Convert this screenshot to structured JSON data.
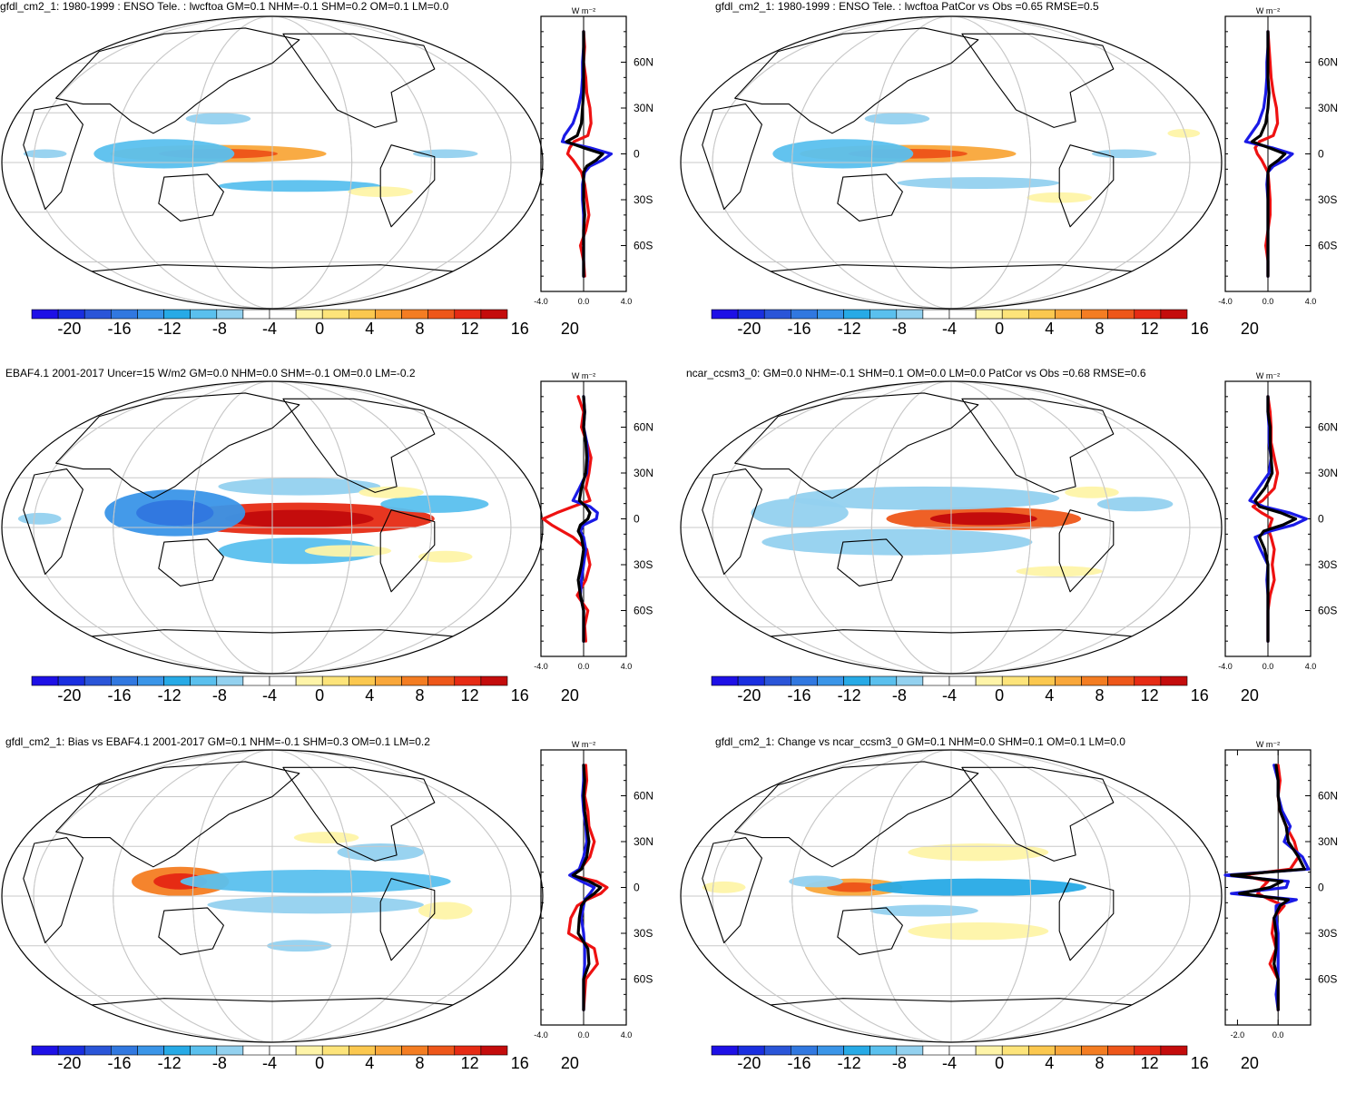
{
  "colors": {
    "scale": [
      "#1e10e6",
      "#1a2fe0",
      "#2a55d8",
      "#3178e0",
      "#3a95e8",
      "#27aae6",
      "#5ac0ee",
      "#93d1ef",
      "#ffffff",
      "#ffffff",
      "#fef4a8",
      "#fde47a",
      "#fbc84f",
      "#f9a73a",
      "#f47d22",
      "#ee571a",
      "#e62b14",
      "#c40c0c"
    ],
    "red_line": "#ee1111",
    "blue_line": "#1a1ae6",
    "black_line": "#000000",
    "grid": "#c8c8c8"
  },
  "chart_data": [
    {
      "type": "heatmap",
      "title": "gfdl_cm2_1: 1980-1999 : ENSO Tele. : lwcftoa GM=0.1 NHM=-0.1 SHM=0.2 OM=0.1 LM=0.0",
      "colorbar_ticks": [
        "-20",
        "-16",
        "-12",
        "-8",
        "-4",
        "0",
        "4",
        "8",
        "12",
        "16",
        "20"
      ],
      "zonal_mean": {
        "unit_label": "W m⁻²",
        "xlim": [
          -4.0,
          4.0
        ],
        "xticks": [
          "-4.0",
          "0.0",
          "4.0"
        ],
        "yticks": [
          "60N",
          "30N",
          "0",
          "30S",
          "60S"
        ],
        "lat": [
          80,
          70,
          60,
          50,
          40,
          30,
          20,
          12,
          8,
          4,
          0,
          -4,
          -8,
          -12,
          -20,
          -30,
          -40,
          -50,
          -60,
          -70,
          -80
        ],
        "series": [
          {
            "name": "red",
            "color": "red",
            "values": [
              0.0,
              0.1,
              0.0,
              0.2,
              0.3,
              0.6,
              0.7,
              0.4,
              -0.9,
              -1.3,
              -1.5,
              -1.0,
              -0.6,
              -0.2,
              0.1,
              0.3,
              0.5,
              0.2,
              -0.3,
              0.0,
              0.1
            ]
          },
          {
            "name": "blue",
            "color": "blue",
            "values": [
              0.0,
              0.0,
              -0.1,
              -0.1,
              -0.2,
              -0.5,
              -1.0,
              -1.8,
              -2.0,
              0.6,
              2.6,
              1.8,
              0.6,
              0.1,
              -0.1,
              -0.1,
              0.0,
              0.0,
              0.0,
              0.0,
              0.0
            ]
          },
          {
            "name": "black",
            "color": "black",
            "values": [
              0.0,
              0.0,
              0.0,
              0.0,
              0.0,
              -0.1,
              -0.2,
              -0.6,
              -1.6,
              0.0,
              1.8,
              1.2,
              0.3,
              0.0,
              0.0,
              0.0,
              0.1,
              0.0,
              0.0,
              0.0,
              0.0
            ]
          }
        ]
      }
    },
    {
      "type": "heatmap",
      "title": "gfdl_cm2_1: 1980-1999 : ENSO Tele. : lwcftoa PatCor vs Obs =0.65 RMSE=0.5",
      "colorbar_ticks": [
        "-20",
        "-16",
        "-12",
        "-8",
        "-4",
        "0",
        "4",
        "8",
        "12",
        "16",
        "20"
      ],
      "zonal_mean": {
        "unit_label": "W m⁻²",
        "xlim": [
          -4.0,
          4.0
        ],
        "xticks": [
          "-4.0",
          "0.0",
          "4.0"
        ],
        "yticks": [
          "60N",
          "30N",
          "0",
          "30S",
          "60S"
        ],
        "lat": [
          80,
          70,
          60,
          50,
          40,
          30,
          20,
          12,
          8,
          4,
          0,
          -4,
          -8,
          -12,
          -20,
          -30,
          -40,
          -50,
          -60,
          -70,
          -80
        ],
        "series": [
          {
            "name": "red",
            "color": "red",
            "values": [
              0.0,
              0.1,
              0.2,
              0.3,
              0.5,
              0.8,
              0.9,
              0.5,
              -0.8,
              -1.2,
              -1.0,
              -0.6,
              -0.3,
              0.0,
              0.1,
              0.2,
              0.2,
              0.0,
              -0.2,
              0.0,
              0.0
            ]
          },
          {
            "name": "blue",
            "color": "blue",
            "values": [
              0.0,
              0.0,
              -0.1,
              -0.1,
              -0.2,
              -0.4,
              -0.9,
              -1.7,
              -2.1,
              0.4,
              2.3,
              1.6,
              0.5,
              0.0,
              -0.1,
              0.0,
              0.0,
              0.0,
              0.0,
              0.0,
              0.0
            ]
          },
          {
            "name": "black",
            "color": "black",
            "values": [
              0.0,
              0.0,
              0.0,
              0.0,
              0.1,
              0.0,
              -0.2,
              -0.7,
              -1.5,
              0.1,
              1.6,
              1.0,
              0.2,
              0.0,
              0.0,
              0.0,
              0.0,
              0.0,
              0.0,
              0.0,
              0.0
            ]
          }
        ]
      }
    },
    {
      "type": "heatmap",
      "title": "EBAF4.1 2001-2017 Uncer=15 W/m2 GM=0.0 NHM=0.0 SHM=-0.1 OM=0.0 LM=-0.2",
      "colorbar_ticks": [
        "-20",
        "-16",
        "-12",
        "-8",
        "-4",
        "0",
        "4",
        "8",
        "12",
        "16",
        "20"
      ],
      "zonal_mean": {
        "unit_label": "W m⁻²",
        "xlim": [
          -4.0,
          4.0
        ],
        "xticks": [
          "-4.0",
          "0.0",
          "4.0"
        ],
        "yticks": [
          "60N",
          "30N",
          "0",
          "30S",
          "60S"
        ],
        "lat": [
          80,
          70,
          60,
          50,
          40,
          30,
          20,
          12,
          8,
          4,
          0,
          -4,
          -8,
          -12,
          -20,
          -30,
          -40,
          -50,
          -60,
          -70,
          -80
        ],
        "series": [
          {
            "name": "red",
            "color": "red",
            "values": [
              -0.5,
              0.0,
              -0.2,
              0.3,
              0.7,
              0.5,
              0.2,
              0.6,
              -1.0,
              -2.5,
              -3.8,
              -3.0,
              -2.0,
              -1.0,
              0.3,
              0.6,
              0.2,
              -0.6,
              0.4,
              0.1,
              0.2
            ]
          },
          {
            "name": "blue",
            "color": "blue",
            "values": [
              0.0,
              0.1,
              0.0,
              0.3,
              0.4,
              0.3,
              -0.4,
              -1.0,
              0.6,
              1.3,
              1.2,
              0.0,
              -0.3,
              0.0,
              0.2,
              0.0,
              -0.2,
              -0.3,
              0.0,
              0.0,
              0.0
            ]
          },
          {
            "name": "black",
            "color": "black",
            "values": [
              0.0,
              0.1,
              0.0,
              0.2,
              0.3,
              0.2,
              -0.2,
              -0.4,
              0.2,
              0.6,
              0.4,
              -0.3,
              -0.5,
              -0.2,
              0.0,
              -0.2,
              -0.5,
              -0.3,
              0.0,
              0.0,
              0.0
            ]
          }
        ]
      }
    },
    {
      "type": "heatmap",
      "title": "ncar_ccsm3_0: GM=0.0 NHM=-0.1 SHM=0.1 OM=0.0 LM=0.0 PatCor vs Obs =0.68 RMSE=0.6",
      "colorbar_ticks": [
        "-20",
        "-16",
        "-12",
        "-8",
        "-4",
        "0",
        "4",
        "8",
        "12",
        "16",
        "20"
      ],
      "zonal_mean": {
        "unit_label": "W m⁻²",
        "xlim": [
          -4.0,
          4.0
        ],
        "xticks": [
          "-4.0",
          "0.0",
          "4.0"
        ],
        "yticks": [
          "60N",
          "30N",
          "0",
          "30S",
          "60S"
        ],
        "lat": [
          80,
          70,
          60,
          50,
          40,
          30,
          20,
          12,
          8,
          4,
          0,
          -4,
          -8,
          -12,
          -20,
          -30,
          -40,
          -50,
          -60,
          -70,
          -80
        ],
        "series": [
          {
            "name": "red",
            "color": "red",
            "values": [
              0.0,
              0.2,
              0.3,
              0.3,
              0.6,
              0.9,
              0.6,
              -0.5,
              -1.4,
              -0.6,
              0.4,
              0.2,
              0.1,
              0.3,
              0.6,
              0.4,
              0.6,
              0.2,
              0.0,
              0.0,
              0.0
            ]
          },
          {
            "name": "blue",
            "color": "blue",
            "values": [
              0.0,
              0.0,
              0.1,
              0.1,
              0.3,
              0.1,
              -0.9,
              -1.7,
              -0.4,
              2.0,
              3.6,
              2.4,
              0.2,
              -1.2,
              -0.7,
              0.0,
              -0.1,
              0.0,
              0.0,
              0.0,
              0.0
            ]
          },
          {
            "name": "black",
            "color": "black",
            "values": [
              0.0,
              0.0,
              0.2,
              0.2,
              0.3,
              0.4,
              -0.3,
              -1.2,
              -0.8,
              1.2,
              2.6,
              1.4,
              -0.4,
              -0.8,
              -0.3,
              0.0,
              0.0,
              0.0,
              0.0,
              0.0,
              0.0
            ]
          }
        ]
      }
    },
    {
      "type": "heatmap",
      "title": "gfdl_cm2_1: Bias vs EBAF4.1 2001-2017 GM=0.1 NHM=-0.1 SHM=0.3 OM=0.1 LM=0.2",
      "colorbar_ticks": [
        "-20",
        "-16",
        "-12",
        "-8",
        "-4",
        "0",
        "4",
        "8",
        "12",
        "16",
        "20"
      ],
      "zonal_mean": {
        "unit_label": "W m⁻²",
        "xlim": [
          -4.0,
          4.0
        ],
        "xticks": [
          "-4.0",
          "0.0",
          "4.0"
        ],
        "yticks": [
          "60N",
          "30N",
          "0",
          "30S",
          "60S"
        ],
        "lat": [
          80,
          70,
          60,
          50,
          40,
          30,
          20,
          12,
          8,
          4,
          0,
          -4,
          -8,
          -12,
          -20,
          -30,
          -40,
          -50,
          -60,
          -70,
          -80
        ],
        "series": [
          {
            "name": "red",
            "color": "red",
            "values": [
              0.2,
              0.3,
              0.1,
              0.4,
              0.5,
              1.0,
              0.6,
              -0.3,
              -1.2,
              1.2,
              2.2,
              1.6,
              0.3,
              -0.6,
              -1.2,
              -1.4,
              1.0,
              1.3,
              0.2,
              0.1,
              0.0
            ]
          },
          {
            "name": "blue",
            "color": "blue",
            "values": [
              0.0,
              0.0,
              -0.1,
              0.0,
              0.2,
              0.3,
              0.0,
              -0.4,
              -1.3,
              -0.2,
              1.0,
              0.6,
              0.1,
              0.0,
              -0.2,
              0.0,
              0.1,
              0.1,
              0.0,
              0.0,
              0.0
            ]
          },
          {
            "name": "black",
            "color": "black",
            "values": [
              0.0,
              0.1,
              0.0,
              0.1,
              0.3,
              0.5,
              0.3,
              -0.2,
              -1.0,
              0.5,
              1.6,
              1.0,
              0.2,
              -0.2,
              -0.4,
              -0.5,
              0.4,
              0.5,
              0.0,
              0.0,
              0.0
            ]
          }
        ]
      }
    },
    {
      "type": "heatmap",
      "title": "gfdl_cm2_1: Change vs ncar_ccsm3_0 GM=0.1 NHM=0.0 SHM=0.1 OM=0.1 LM=0.0",
      "colorbar_ticks": [
        "-20",
        "-16",
        "-12",
        "-8",
        "-4",
        "0",
        "4",
        "8",
        "12",
        "16",
        "20"
      ],
      "zonal_mean": {
        "unit_label": "W m⁻²",
        "xlim": [
          -2.6,
          1.6
        ],
        "xticks": [
          "-2.0",
          "0.0"
        ],
        "yticks": [
          "60N",
          "30N",
          "0",
          "30S",
          "60S"
        ],
        "lat": [
          80,
          70,
          60,
          50,
          40,
          30,
          20,
          12,
          8,
          4,
          0,
          -4,
          -8,
          -12,
          -20,
          -30,
          -40,
          -50,
          -60,
          -70,
          -80
        ],
        "series": [
          {
            "name": "red",
            "color": "red",
            "values": [
              0.0,
              0.1,
              0.0,
              0.1,
              0.4,
              0.8,
              1.0,
              0.6,
              -1.8,
              -0.5,
              -0.8,
              -1.0,
              -0.4,
              0.3,
              -0.2,
              -0.3,
              -0.1,
              -0.4,
              0.0,
              0.0,
              0.0
            ]
          },
          {
            "name": "blue",
            "color": "blue",
            "values": [
              -0.2,
              0.0,
              0.0,
              0.2,
              0.6,
              0.3,
              1.2,
              1.5,
              -2.6,
              0.5,
              0.4,
              -2.3,
              0.9,
              -0.1,
              -0.1,
              0.0,
              0.0,
              0.0,
              0.0,
              -0.1,
              0.0
            ]
          },
          {
            "name": "black",
            "color": "black",
            "values": [
              -0.1,
              0.0,
              0.0,
              0.1,
              0.4,
              0.5,
              1.0,
              1.3,
              -2.3,
              0.2,
              -0.4,
              -1.9,
              0.5,
              0.1,
              -0.2,
              -0.1,
              -0.1,
              -0.2,
              0.0,
              0.0,
              0.0
            ]
          }
        ]
      }
    }
  ]
}
